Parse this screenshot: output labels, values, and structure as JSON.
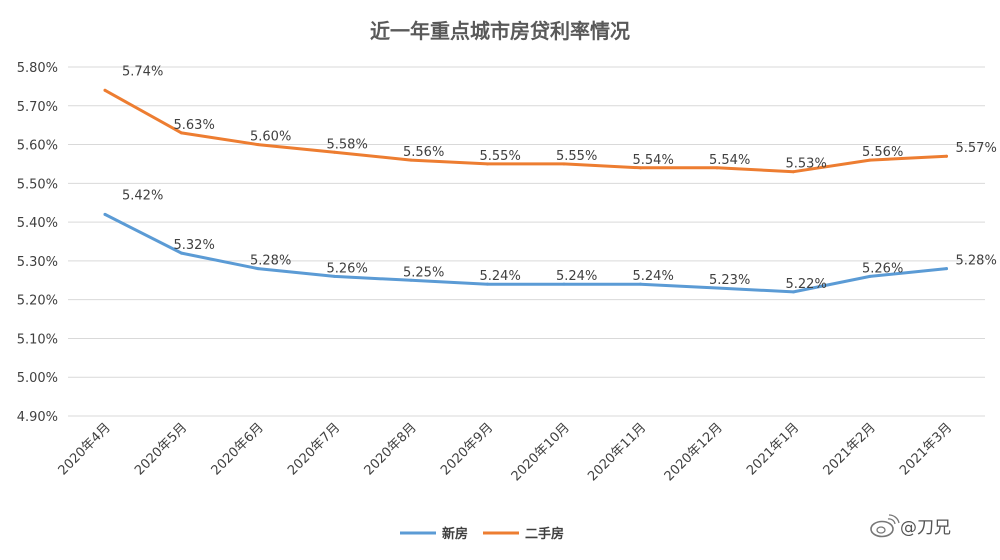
{
  "chart_data": {
    "type": "line",
    "title": "近一年重点城市房贷利率情况",
    "categories": [
      "2020年4月",
      "2020年5月",
      "2020年6月",
      "2020年7月",
      "2020年8月",
      "2020年9月",
      "2020年10月",
      "2020年11月",
      "2020年12月",
      "2021年1月",
      "2021年2月",
      "2021年3月"
    ],
    "series": [
      {
        "name": "新房",
        "color": "#5B9BD5",
        "values": [
          5.42,
          5.32,
          5.28,
          5.26,
          5.25,
          5.24,
          5.24,
          5.24,
          5.23,
          5.22,
          5.26,
          5.28
        ],
        "labels": [
          "5.42%",
          "5.32%",
          "5.28%",
          "5.26%",
          "5.25%",
          "5.24%",
          "5.24%",
          "5.24%",
          "5.23%",
          "5.22%",
          "5.26%",
          "5.28%"
        ]
      },
      {
        "name": "二手房",
        "color": "#ED7D31",
        "values": [
          5.74,
          5.63,
          5.6,
          5.58,
          5.56,
          5.55,
          5.55,
          5.54,
          5.54,
          5.53,
          5.56,
          5.57
        ],
        "labels": [
          "5.74%",
          "5.63%",
          "5.60%",
          "5.58%",
          "5.56%",
          "5.55%",
          "5.55%",
          "5.54%",
          "5.54%",
          "5.53%",
          "5.56%",
          "5.57%"
        ]
      }
    ],
    "yticks": [
      "5.80%",
      "5.70%",
      "5.60%",
      "5.50%",
      "5.40%",
      "5.30%",
      "5.20%",
      "5.10%",
      "5.00%",
      "4.90%"
    ],
    "ylim": [
      4.9,
      5.8
    ],
    "grid": true,
    "legend_position": "bottom",
    "xlabel": "",
    "ylabel": ""
  },
  "watermark": {
    "icon": "weibo-icon",
    "text": "@刀兄"
  }
}
